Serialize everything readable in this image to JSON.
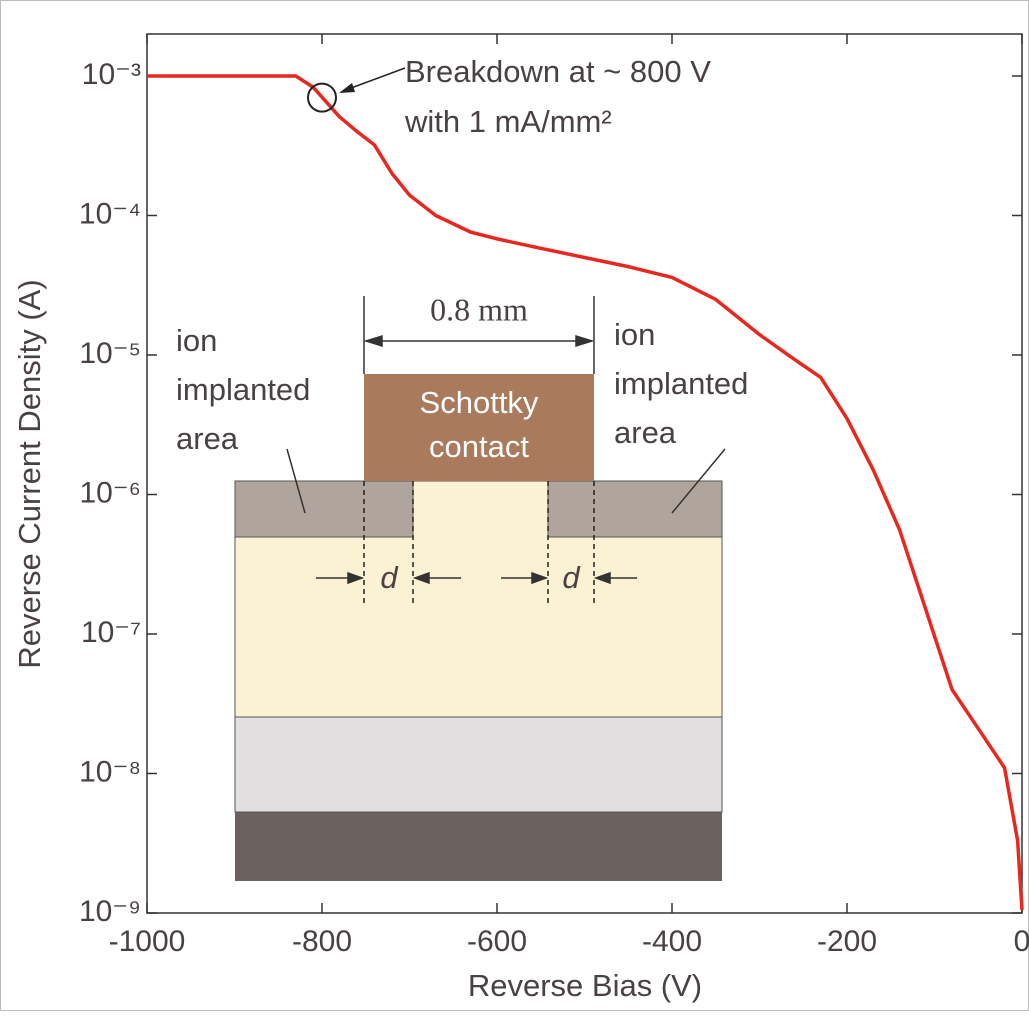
{
  "chart_data": {
    "type": "line",
    "x_label": "Reverse Bias (V)",
    "y_label": "Reverse Current Density (A)",
    "log_y": true,
    "xlim": [
      -1000,
      0
    ],
    "xticks": [
      -1000,
      -800,
      -600,
      -400,
      -200,
      0
    ],
    "ylim": [
      1e-09,
      0.002
    ],
    "yticks": [
      {
        "value": 1e-09,
        "label": "10⁻⁹"
      },
      {
        "value": 1e-08,
        "label": "10⁻⁸"
      },
      {
        "value": 1e-07,
        "label": "10⁻⁷"
      },
      {
        "value": 1e-06,
        "label": "10⁻⁶"
      },
      {
        "value": 1e-05,
        "label": "10⁻⁵"
      },
      {
        "value": 0.0001,
        "label": "10⁻⁴"
      },
      {
        "value": 0.001,
        "label": "10⁻³"
      }
    ],
    "series": [
      {
        "color": "#e8281e",
        "x": [
          -1000,
          -830,
          -810,
          -780,
          -760,
          -740,
          -720,
          -700,
          -670,
          -630,
          -600,
          -560,
          -500,
          -450,
          -400,
          -350,
          -300,
          -260,
          -230,
          -200,
          -170,
          -140,
          -110,
          -80,
          -50,
          -20,
          -5,
          0
        ],
        "values": [
          0.001,
          0.001,
          0.00083,
          0.00051,
          0.0004,
          0.00032,
          0.0002,
          0.00014,
          0.0001,
          7.6e-05,
          6.8e-05,
          6e-05,
          5e-05,
          4.3e-05,
          3.6e-05,
          2.5e-05,
          1.4e-05,
          9.3e-06,
          6.9e-06,
          3.5e-06,
          1.5e-06,
          5.6e-07,
          1.5e-07,
          4e-08,
          2.1e-08,
          1.1e-08,
          3.3e-09,
          1.05e-09
        ]
      }
    ],
    "annotation": {
      "text": [
        "Breakdown at ~ 800 V",
        "with 1 mA/mm²"
      ],
      "x": -800,
      "y": 0.0007
    },
    "inset": {
      "dimension": "0.8 mm",
      "left_label": [
        "ion",
        "implanted",
        "area"
      ],
      "right_label": [
        "ion",
        "implanted",
        "area"
      ],
      "contact": [
        "Schottky",
        "contact"
      ],
      "gap_label": "d"
    }
  }
}
